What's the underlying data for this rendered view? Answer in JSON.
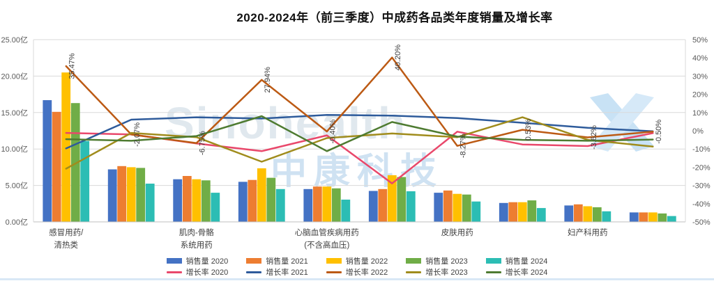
{
  "title": "2020-2024年（前三季度）中成药各品类年度销量及增长率",
  "watermark": {
    "brand": "Sinohealth",
    "brand_cn": "中康科技",
    "logo": "x-mark",
    "logo_color": "#a5d0f0"
  },
  "chart_data": {
    "type": "bar+line combo",
    "title": "2020-2024年（前三季度）中成药各品类年度销量及增长率",
    "grid": "horizontal",
    "legend_position": "bottom",
    "y_left": {
      "min": 0,
      "max": 25,
      "ticks": [
        "0.00亿",
        "5.00亿",
        "10.00亿",
        "15.00亿",
        "20.00亿",
        "25.00亿"
      ]
    },
    "y_right": {
      "min": -50,
      "max": 50,
      "ticks": [
        "-50%",
        "-40%",
        "-30%",
        "-20%",
        "-10%",
        "0%",
        "10%",
        "20%",
        "30%",
        "40%",
        "50%"
      ]
    },
    "categories": [
      {
        "label_lines": [
          "感冒用药/",
          "清热类"
        ]
      },
      {
        "label_lines": []
      },
      {
        "label_lines": [
          "肌肉-骨骼",
          "系统用药"
        ]
      },
      {
        "label_lines": []
      },
      {
        "label_lines": [
          "心脑血管疾病用药",
          "(不含高血压)"
        ]
      },
      {
        "label_lines": []
      },
      {
        "label_lines": [
          "皮肤用药"
        ]
      },
      {
        "label_lines": []
      },
      {
        "label_lines": [
          "妇产科用药"
        ]
      },
      {
        "label_lines": []
      }
    ],
    "bar_series": [
      {
        "name": "销售量 2020",
        "color": "#4472C4",
        "unit": "亿",
        "values": [
          16.7,
          7.2,
          5.85,
          5.5,
          4.5,
          4.25,
          4.0,
          2.6,
          2.25,
          1.3
        ]
      },
      {
        "name": "销售量 2021",
        "color": "#ED7D31",
        "unit": "亿",
        "values": [
          15.1,
          7.65,
          6.3,
          5.75,
          4.85,
          4.5,
          4.3,
          2.7,
          2.4,
          1.3
        ]
      },
      {
        "name": "销售量 2022",
        "color": "#FFC000",
        "unit": "亿",
        "values": [
          20.5,
          7.5,
          5.85,
          7.35,
          4.85,
          6.4,
          3.85,
          2.7,
          2.15,
          1.3
        ]
      },
      {
        "name": "销售量 2023",
        "color": "#70AD47",
        "unit": "亿",
        "values": [
          16.3,
          7.4,
          5.7,
          6.05,
          4.6,
          6.15,
          3.75,
          2.95,
          2.0,
          1.15
        ]
      },
      {
        "name": "销售量 2024",
        "color": "#2CBDB4",
        "unit": "亿",
        "values": [
          11.1,
          5.25,
          4.0,
          4.5,
          3.05,
          4.2,
          2.8,
          1.9,
          1.45,
          0.8
        ]
      }
    ],
    "line_series": [
      {
        "name": "增长率 2020",
        "color": "#E9486B",
        "unit": "%",
        "values": [
          -1.2,
          -2.0,
          -7.0,
          -11.2,
          -2.5,
          -28.9,
          -0.5,
          -7.5,
          -8.4,
          -1.3
        ]
      },
      {
        "name": "增长率 2021",
        "color": "#2E5B9B",
        "unit": "%",
        "values": [
          -9.7,
          6.1,
          7.4,
          6.7,
          8.7,
          8.3,
          7.0,
          4.4,
          1.6,
          -0.3
        ]
      },
      {
        "name": "增长率 2022",
        "color": "#BC5A14",
        "unit": "%",
        "values": [
          35.47,
          -2.07,
          -6.75,
          27.94,
          -0.4,
          40.2,
          -8.27,
          0.53,
          -3.62,
          -0.5
        ],
        "point_labels": [
          "35.47%",
          "-2.07%",
          "-6.75%",
          "27.94%",
          "-0.40%",
          "40.20%",
          "-8.27%",
          "0.53%",
          "-3.62%",
          "-0.50%"
        ]
      },
      {
        "name": "增长率 2023",
        "color": "#A08C1C",
        "unit": "%",
        "values": [
          -20.8,
          -1.2,
          -3.5,
          -17.0,
          -4.0,
          -1.5,
          -3.5,
          7.4,
          -5.0,
          -8.7
        ]
      },
      {
        "name": "增长率 2024",
        "color": "#4E7B31",
        "unit": "%",
        "values": [
          -4.6,
          -5.5,
          -2.9,
          8.0,
          -11.2,
          4.8,
          -3.2,
          -5.0,
          -5.5,
          -4.8
        ]
      }
    ]
  }
}
